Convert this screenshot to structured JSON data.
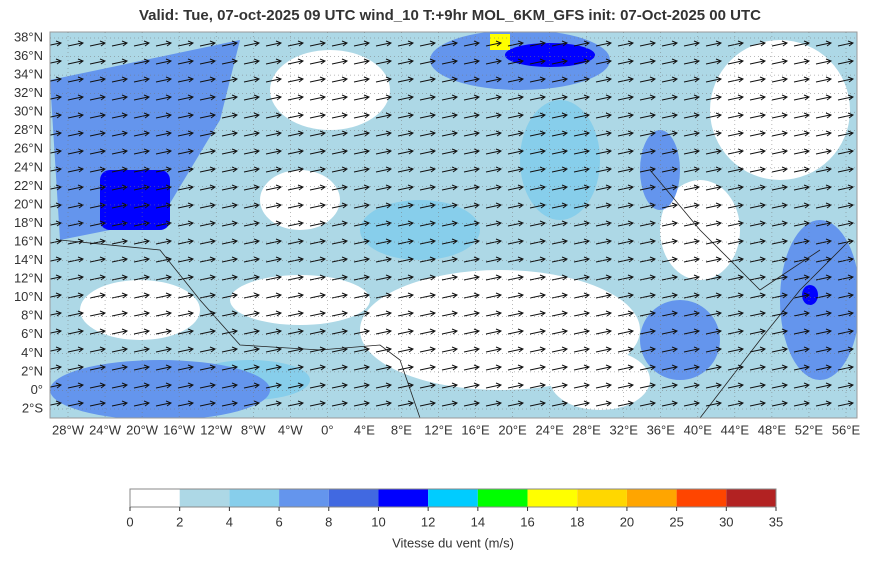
{
  "header": {
    "title": "Valid: Tue, 07-oct-2025   09 UTC   wind_10   T:+9hr   MOL_6KM_GFS   init: 07-Oct-2025    00 UTC"
  },
  "map": {
    "lat_labels": [
      "38°N",
      "36°N",
      "34°N",
      "32°N",
      "30°N",
      "28°N",
      "26°N",
      "24°N",
      "22°N",
      "20°N",
      "18°N",
      "16°N",
      "14°N",
      "12°N",
      "10°N",
      "8°N",
      "6°N",
      "4°N",
      "2°N",
      "0°",
      "2°S"
    ],
    "lon_labels": [
      "28°W",
      "24°W",
      "20°W",
      "16°W",
      "12°W",
      "8°W",
      "4°W",
      "0°",
      "4°E",
      "8°E",
      "12°E",
      "16°E",
      "20°E",
      "24°E",
      "28°E",
      "32°E",
      "36°E",
      "40°E",
      "44°E",
      "48°E",
      "52°E",
      "56°E"
    ]
  },
  "colorbar": {
    "ticks": [
      0,
      2,
      4,
      6,
      8,
      10,
      12,
      14,
      16,
      18,
      20,
      25,
      30,
      35
    ],
    "colors": [
      "#ffffff",
      "#add8e6",
      "#87ceeb",
      "#6495ed",
      "#4169e1",
      "#0000ff",
      "#00ccff",
      "#00ff00",
      "#ffff00",
      "#ffd700",
      "#ffa500",
      "#ff4500",
      "#b22222"
    ],
    "label": "Vitesse du vent (m/s)"
  }
}
